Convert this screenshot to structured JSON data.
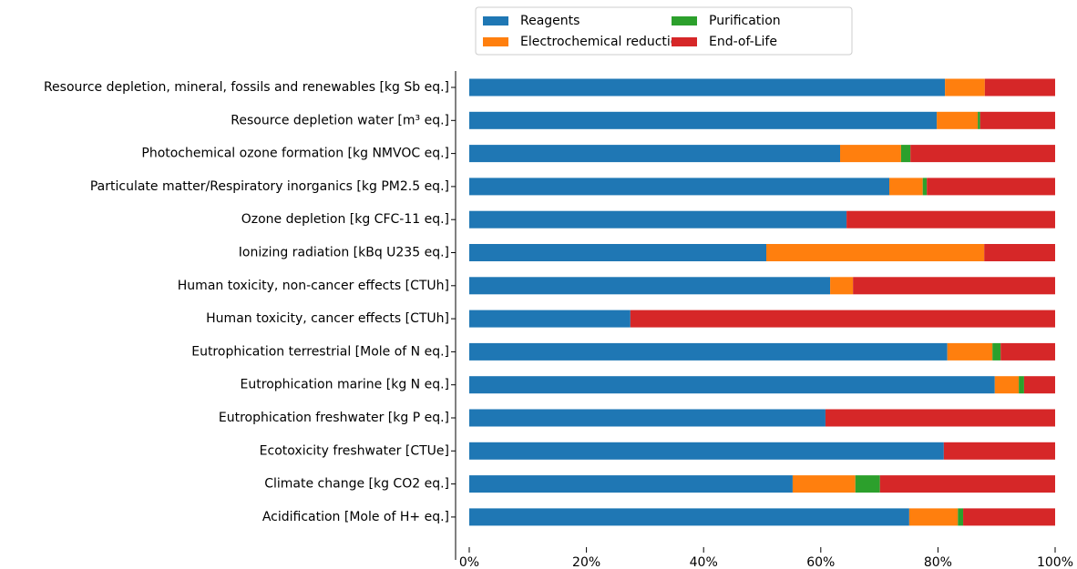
{
  "chart_data": {
    "type": "stacked_barh",
    "categories": [
      "Resource depletion, mineral, fossils and renewables [kg Sb eq.]",
      "Resource depletion water [m³ eq.]",
      "Photochemical ozone formation [kg NMVOC eq.]",
      "Particulate matter/Respiratory inorganics [kg PM2.5 eq.]",
      "Ozone depletion [kg CFC-11 eq.]",
      "Ionizing radiation [kBq U235 eq.]",
      "Human toxicity, non-cancer effects [CTUh]",
      "Human toxicity, cancer effects [CTUh]",
      "Eutrophication terrestrial [Mole of N eq.]",
      "Eutrophication marine [kg N eq.]",
      "Eutrophication freshwater [kg P eq.]",
      "Ecotoxicity freshwater [CTUe]",
      "Climate change [kg CO2 eq.]",
      "Acidification [Mole of H+ eq.]"
    ],
    "series": [
      {
        "name": "Reagents",
        "color": "#1f77b4",
        "values": [
          81.2,
          79.8,
          63.3,
          71.7,
          64.4,
          50.7,
          61.6,
          27.5,
          81.6,
          89.7,
          60.8,
          81.0,
          55.2,
          75.1
        ]
      },
      {
        "name": "Electrochemical reduction",
        "color": "#ff7f0e",
        "values": [
          6.8,
          7.0,
          10.4,
          5.7,
          0,
          37.2,
          3.9,
          0,
          7.7,
          4.1,
          0,
          0,
          10.7,
          8.3
        ]
      },
      {
        "name": "Purification",
        "color": "#2ca02c",
        "values": [
          0,
          0.4,
          1.6,
          0.7,
          0,
          0,
          0,
          0,
          1.4,
          0.9,
          0,
          0,
          4.2,
          0.9
        ]
      },
      {
        "name": "End-of-Life",
        "color": "#d62728",
        "values": [
          12.0,
          12.8,
          24.7,
          21.9,
          35.6,
          12.1,
          34.5,
          72.5,
          9.3,
          5.3,
          39.2,
          19.0,
          29.9,
          15.7
        ]
      }
    ],
    "xlim": [
      0,
      100
    ],
    "xticks": [
      {
        "value": 0,
        "label": "0%"
      },
      {
        "value": 20,
        "label": "20%"
      },
      {
        "value": 40,
        "label": "40%"
      },
      {
        "value": 60,
        "label": "60%"
      },
      {
        "value": 80,
        "label": "80%"
      },
      {
        "value": 100,
        "label": "100%"
      }
    ],
    "legend": "upper center"
  }
}
